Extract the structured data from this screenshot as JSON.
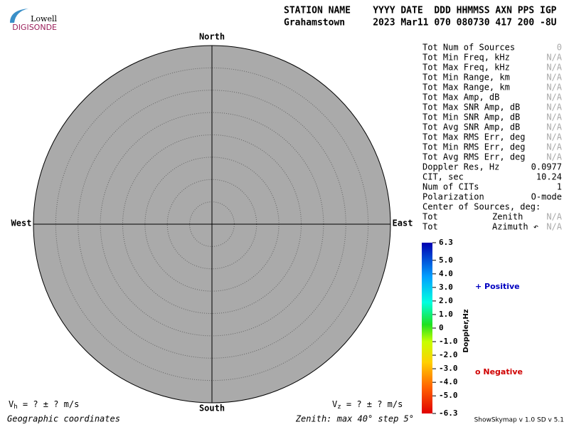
{
  "logo": {
    "top": "Lowell",
    "bottom": "DIGISONDE"
  },
  "header": {
    "line1": "STATION NAME    YYYY DATE  DDD HHMMSS AXN PPS IGP",
    "line2": "Grahamstown     2023 Mar11 070 080730 417 200 -8U"
  },
  "compass": {
    "north": "North",
    "south": "South",
    "west": "West",
    "east": "East"
  },
  "stats": [
    {
      "label": "Tot Num of Sources",
      "value": "0",
      "dim": true
    },
    {
      "label": "Tot Min Freq, kHz",
      "value": "N/A",
      "dim": true
    },
    {
      "label": "Tot Max Freq, kHz",
      "value": "N/A",
      "dim": true
    },
    {
      "label": "Tot Min Range, km",
      "value": "N/A",
      "dim": true
    },
    {
      "label": "Tot Max Range, km",
      "value": "N/A",
      "dim": true
    },
    {
      "label": "Tot Max Amp, dB",
      "value": "N/A",
      "dim": true
    },
    {
      "label": "Tot Max SNR Amp, dB",
      "value": "N/A",
      "dim": true
    },
    {
      "label": "Tot Min SNR Amp, dB",
      "value": "N/A",
      "dim": true
    },
    {
      "label": "Tot Avg SNR Amp, dB",
      "value": "N/A",
      "dim": true
    },
    {
      "label": "Tot Max RMS Err, deg",
      "value": "N/A",
      "dim": true
    },
    {
      "label": "Tot Min RMS Err, deg",
      "value": "N/A",
      "dim": true
    },
    {
      "label": "Tot Avg RMS Err, deg",
      "value": "N/A",
      "dim": true
    },
    {
      "label": "Doppler Res, Hz",
      "value": "0.0977",
      "dim": false
    },
    {
      "label": "CIT, sec",
      "value": "10.24",
      "dim": false
    },
    {
      "label": "Num of CITs",
      "value": "1",
      "dim": false
    },
    {
      "label": "Polarization",
      "value": "O-mode",
      "dim": false
    },
    {
      "label": "Center of Sources, deg:"
    },
    {
      "label": "Tot",
      "sublabel": "Zenith",
      "value": "N/A",
      "dim": true
    },
    {
      "label": "Tot",
      "sublabel": "Azimuth ↶",
      "value": "N/A",
      "dim": true
    }
  ],
  "colorbar": {
    "label": "Doppler,Hz",
    "lim": [
      -6.3,
      6.3
    ],
    "ticks": [
      6.3,
      {
        "value": 5,
        "label": "5.0"
      },
      {
        "value": 4,
        "label": "4.0"
      },
      {
        "value": 3,
        "label": "3.0"
      },
      {
        "value": 2,
        "label": "2.0"
      },
      {
        "value": 1,
        "label": "1.0"
      },
      0,
      {
        "value": -1,
        "label": "-1.0"
      },
      {
        "value": -2,
        "label": "-2.0"
      },
      {
        "value": -3,
        "label": "-3.0"
      },
      {
        "value": -4,
        "label": "-4.0"
      },
      {
        "value": -5,
        "label": "-5.0"
      },
      -6.3
    ]
  },
  "legend": {
    "positive": "+ Positive",
    "negative": "o Negative"
  },
  "footer": {
    "vh": {
      "symbol": "V",
      "sub": "h",
      "text": " =  ? ±  ? m/s"
    },
    "vz": {
      "symbol": "V",
      "sub": "z",
      "text": " =  ? ±  ? m/s"
    },
    "coords": "Geographic coordinates",
    "zenith": "Zenith: max 40°  step 5°",
    "version": "ShowSkymap v 1.0  SD v 5.1"
  }
}
